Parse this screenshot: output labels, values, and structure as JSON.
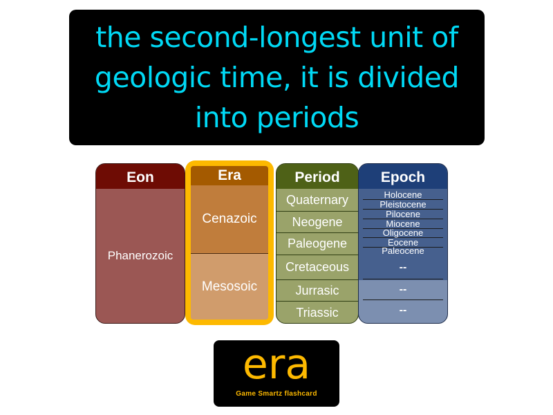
{
  "definition": "the second-longest unit of geologic time, it is divided into periods",
  "table": {
    "eon": {
      "header": "Eon",
      "cells": [
        "Phanerozoic"
      ]
    },
    "era": {
      "header": "Era",
      "cells": [
        "Cenazoic",
        "Mesosoic"
      ]
    },
    "period": {
      "header": "Period",
      "cells": [
        "Quaternary",
        "Neogene",
        "Paleogene",
        "Cretaceous",
        "Jurrasic",
        "Triassic"
      ]
    },
    "epoch": {
      "header": "Epoch",
      "cells": [
        "Holocene",
        "Pleistocene",
        "Pilocene",
        "Miocene",
        "Oligocene",
        "Eocene",
        "Paleocene",
        "--",
        "--",
        "--"
      ]
    }
  },
  "term": "era",
  "brand": "Game Smartz flashcard",
  "colors": {
    "definition_text": "#00d9f5",
    "term_text": "#fdb900",
    "eon_header": "#6e0c04",
    "era_header": "#a45a00",
    "era_highlight": "#fdb900",
    "period_header": "#4e6117",
    "epoch_header": "#1e3f78"
  }
}
